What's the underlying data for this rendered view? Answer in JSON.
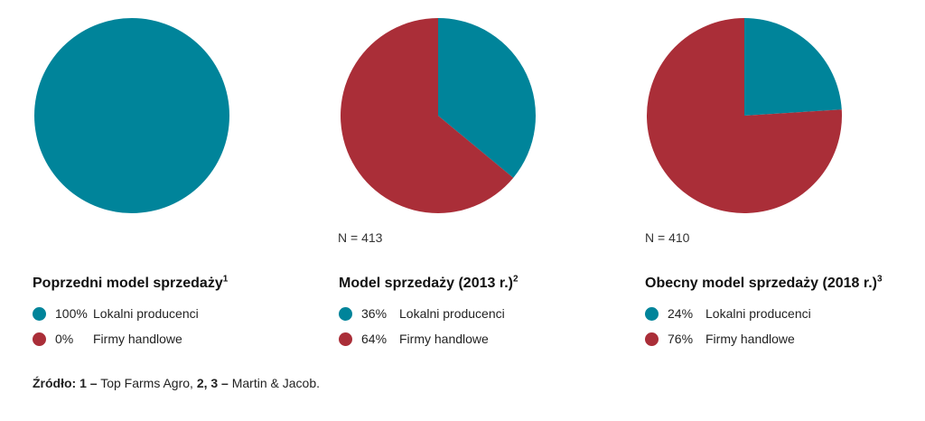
{
  "colors": {
    "local": "#00849a",
    "trade": "#aa2e38"
  },
  "chart_data": [
    {
      "type": "pie",
      "title": "Poprzedni model sprzedaży",
      "title_sup": "1",
      "n_label": "",
      "categories": [
        "Lokalni producenci",
        "Firmy handlowe"
      ],
      "values": [
        100,
        0
      ],
      "value_labels": [
        "100%",
        "0%"
      ]
    },
    {
      "type": "pie",
      "title": "Model sprzedaży (2013 r.)",
      "title_sup": "2",
      "n_label": "N = 413",
      "categories": [
        "Lokalni producenci",
        "Firmy handlowe"
      ],
      "values": [
        36,
        64
      ],
      "value_labels": [
        "36%",
        "64%"
      ]
    },
    {
      "type": "pie",
      "title": "Obecny model sprzedaży (2018 r.)",
      "title_sup": "3",
      "n_label": "N = 410",
      "categories": [
        "Lokalni producenci",
        "Firmy handlowe"
      ],
      "values": [
        24,
        76
      ],
      "value_labels": [
        "24%",
        "76%"
      ]
    }
  ],
  "source": {
    "label": "Źródło:",
    "ref1": "1 –",
    "ref1_text": "Top Farms Agro,",
    "ref23": "2, 3 –",
    "ref23_text": "Martin & Jacob."
  }
}
